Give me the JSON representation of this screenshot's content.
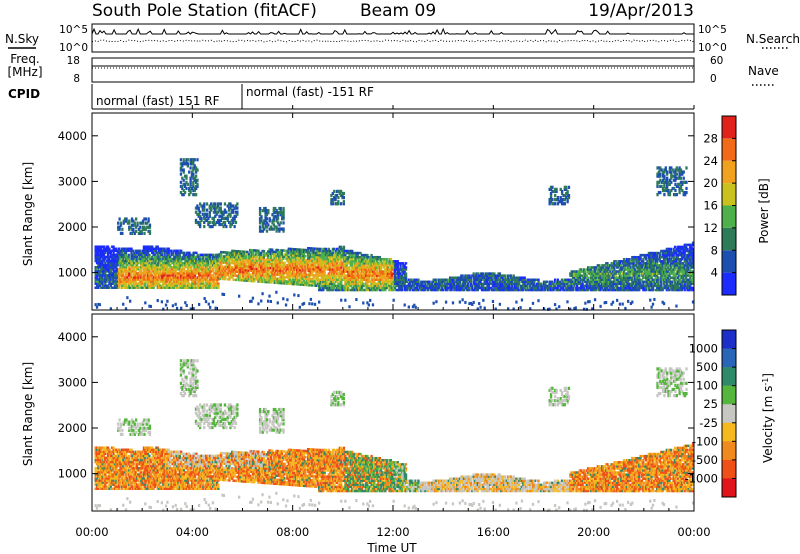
{
  "header": {
    "station": "South Pole Station (fitACF)",
    "beam": "Beam 09",
    "date": "19/Apr/2013"
  },
  "params": {
    "nsky_label": "N.Sky",
    "nsearch_label": "N.Search",
    "freq_label_line1": "Freq.",
    "freq_label_line2": "[MHz]",
    "nave_label": "Nave",
    "cpid_label": "CPID",
    "noise_ticks_left": [
      "10^5",
      "10^0"
    ],
    "noise_ticks_right": [
      "10^5",
      "10^0"
    ],
    "freq_ticks": [
      "18",
      "8"
    ],
    "nave_ticks": [
      "60",
      "0"
    ],
    "cpid_segments": [
      {
        "start": "00:00",
        "end": "06:00",
        "text": "normal (fast) 151 RF"
      },
      {
        "start": "06:00",
        "end": "24:00",
        "text": "normal (fast) -151 RF"
      }
    ]
  },
  "chart_data": [
    {
      "type": "heatmap",
      "title": "",
      "xlabel": "Time UT",
      "ylabel": "Slant Range [km]",
      "colorbar_label": "Power [dB]",
      "x_range_hours": [
        0,
        24
      ],
      "ylim_km": [
        180,
        4500
      ],
      "yticks": [
        1000,
        2000,
        3000,
        4000
      ],
      "colorbar_ticks": [
        4,
        8,
        12,
        16,
        20,
        24,
        28
      ],
      "colorbar_range": [
        0,
        32
      ],
      "colorbar_colors": [
        "#1c2bff",
        "#1c4fb0",
        "#2e7a59",
        "#4db04a",
        "#c9c21e",
        "#f0a21e",
        "#f06a17",
        "#e0221b"
      ]
    },
    {
      "type": "heatmap",
      "title": "",
      "xlabel": "Time UT",
      "ylabel": "Slant Range [km]",
      "colorbar_label": "Velocity [m s^-1]",
      "x_range_hours": [
        0,
        24
      ],
      "ylim_km": [
        180,
        4500
      ],
      "yticks": [
        1000,
        2000,
        3000,
        4000
      ],
      "colorbar_ticks": [
        "1000",
        "500",
        "100",
        "25",
        "-25",
        "-100",
        "-500",
        "-1000"
      ],
      "colorbar_colors": [
        "#1d2fc9",
        "#2a66b8",
        "#2f8a6a",
        "#55b63e",
        "#c6c6c2",
        "#f5b81e",
        "#f08a1e",
        "#ee5018",
        "#e0141a"
      ]
    }
  ],
  "time_axis": {
    "ticks": [
      "00:00",
      "04:00",
      "08:00",
      "12:00",
      "16:00",
      "20:00",
      "00:00"
    ],
    "label": "Time UT"
  },
  "colors": {
    "power_low": "#1c2bff",
    "power_high": "#e0221b",
    "velocity_positive": "#1d2fc9",
    "velocity_negative": "#e0141a",
    "ground_scatter": "#c6c6c2"
  }
}
